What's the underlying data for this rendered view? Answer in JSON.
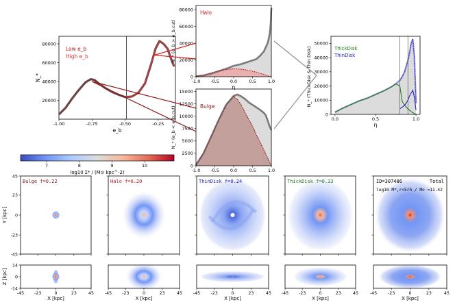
{
  "chart_data": {
    "type": "line",
    "colors": {
      "lowEb": "#b01818",
      "highEb": "#e03030",
      "halo": "#c81616",
      "bulge": "#8b1a1a",
      "thick": "#1e7a1e",
      "thin": "#1e1ec8",
      "dist": "#7a7a7a",
      "fill": "#dcdcdc",
      "link": "#cc2222",
      "link2": "#8b1a1a",
      "grey": "#909090"
    },
    "eb_panel": {
      "xlabel": "e_b",
      "ylabel": "N_*",
      "xticks": [
        "-1.00",
        "-0.75",
        "-0.50",
        "-0.25"
      ],
      "yticks": [
        "20000",
        "40000",
        "60000",
        "80000"
      ],
      "xlim": [
        -1.0,
        -0.12
      ],
      "ylim": [
        0,
        88000
      ],
      "cut": -0.49,
      "legend": [
        "Low e_b",
        "High e_b"
      ],
      "x": [
        -1.0,
        -0.95,
        -0.9,
        -0.85,
        -0.8,
        -0.76,
        -0.73,
        -0.7,
        -0.65,
        -0.6,
        -0.55,
        -0.5,
        -0.45,
        -0.4,
        -0.35,
        -0.3,
        -0.27,
        -0.24,
        -0.21,
        -0.18,
        -0.15,
        -0.13
      ],
      "y": [
        5000,
        12000,
        22000,
        31000,
        39000,
        42500,
        41500,
        38000,
        33000,
        29000,
        26000,
        23500,
        24000,
        28000,
        38000,
        60000,
        75000,
        83000,
        80000,
        75000,
        63000,
        56000
      ]
    },
    "halo_panel": {
      "label": "Halo",
      "ylabel": "N_* (e_b > e_b,cut)",
      "xticks": [
        "-1.0",
        "-0.5",
        "0.0",
        "0.5",
        "1.0"
      ],
      "yticks": [
        "0",
        "20000",
        "40000",
        "60000",
        "80000"
      ],
      "ylim": [
        0,
        85000
      ],
      "eta": [
        -1.0,
        -0.8,
        -0.6,
        -0.4,
        -0.2,
        0.0,
        0.2,
        0.4,
        0.6,
        0.7,
        0.8,
        0.85,
        0.9,
        0.93,
        0.95,
        0.97,
        0.985,
        1.0
      ],
      "total": [
        400,
        1500,
        3500,
        6500,
        9500,
        13000,
        15000,
        18000,
        21000,
        25000,
        30000,
        35000,
        40000,
        45000,
        50000,
        57000,
        65000,
        82000
      ],
      "component": [
        400,
        2000,
        4500,
        7000,
        8500,
        9500,
        9000,
        7500,
        5500,
        4000,
        2800,
        2000,
        1400,
        900,
        600,
        300,
        150,
        0
      ]
    },
    "bulge_panel": {
      "label": "Bulge",
      "ylabel": "N_* (e_b < e_b,cut)",
      "xlabel": "η",
      "xticks": [
        "-1.0",
        "-0.5",
        "0.0",
        "0.5",
        "1.0"
      ],
      "yticks": [
        "0",
        "2500",
        "5000",
        "7500",
        "10000",
        "12500",
        "15000"
      ],
      "ylim": [
        0,
        15500
      ],
      "eta": [
        -1.0,
        -0.8,
        -0.6,
        -0.4,
        -0.2,
        0.0,
        0.1,
        0.2,
        0.3,
        0.4,
        0.5,
        0.6,
        0.7,
        0.8,
        0.85,
        0.9,
        0.95,
        1.0
      ],
      "total": [
        150,
        2500,
        5800,
        9200,
        12300,
        14100,
        14400,
        14000,
        13500,
        12800,
        12300,
        11800,
        11300,
        10700,
        10200,
        9200,
        8000,
        7200
      ],
      "component": [
        150,
        2500,
        5800,
        9200,
        12300,
        14000,
        13400,
        12300,
        10800,
        9400,
        8000,
        6300,
        4800,
        3200,
        2400,
        1600,
        800,
        0
      ]
    },
    "disk_panel": {
      "legend": [
        "ThickDisk",
        "ThinDisk"
      ],
      "xlabel": "η",
      "ylabel": "N_* (ThickDisk & Thin Disk)",
      "xticks": [
        "0.0",
        "0.5",
        "1.0"
      ],
      "yticks": [
        "0",
        "10000",
        "20000",
        "30000",
        "40000",
        "50000"
      ],
      "xlim": [
        -0.05,
        1.05
      ],
      "ylim": [
        0,
        55000
      ],
      "cut1": 0.8,
      "cut2": 0.9,
      "eta": [
        0.0,
        0.1,
        0.2,
        0.3,
        0.4,
        0.5,
        0.6,
        0.7,
        0.75,
        0.8,
        0.83,
        0.86,
        0.88,
        0.9,
        0.92,
        0.94,
        0.96,
        0.98,
        1.0
      ],
      "total": [
        1500,
        4500,
        7000,
        9500,
        11500,
        14000,
        16500,
        19500,
        21500,
        24000,
        26500,
        30000,
        34000,
        38000,
        43000,
        50000,
        53000,
        40000,
        8000
      ],
      "thick": [
        1500,
        4500,
        7000,
        9500,
        11500,
        14000,
        16500,
        19500,
        21500,
        20000,
        9000,
        6500,
        5000,
        4000,
        3000,
        2000,
        1200,
        600,
        0
      ],
      "thin": [
        0,
        0,
        0,
        0,
        0,
        0,
        0,
        0,
        0,
        4000,
        5000,
        6500,
        8000,
        10000,
        13000,
        15000,
        17000,
        12000,
        3000
      ]
    },
    "colorbar": {
      "label": "log10 Σ* / (M⊙ kpc^-2)",
      "ticks": [
        "7",
        "8",
        "9",
        "10"
      ],
      "range": [
        6.2,
        10.9
      ],
      "stops": [
        "#3b4cc0",
        "#7396f5",
        "#b0cbfc",
        "#dddcdc",
        "#f6b89b",
        "#e36c55",
        "#b40426"
      ]
    },
    "maps": {
      "face_ylabel": "Y [kpc]",
      "edge_ylabel": "Z [kpc]",
      "xlabel": "X [kpc]",
      "xticks": [
        "-45",
        "-23",
        "0",
        "23",
        "45"
      ],
      "face_yticks": [
        "45",
        "23",
        "0",
        "-23",
        "-45"
      ],
      "edge_yticks": [
        "14",
        "0",
        "-14"
      ],
      "panels": [
        {
          "name": "bulge",
          "label": "Bulge",
          "frac": "f=0.22",
          "color": "#8b1a1a"
        },
        {
          "name": "halo",
          "label": "Halo",
          "frac": "f=0.20",
          "color": "#c81616"
        },
        {
          "name": "thindisk",
          "label": "ThinDisk",
          "frac": "f=0.24",
          "color": "#1e1ec8"
        },
        {
          "name": "thickdisk",
          "label": "ThickDisk",
          "frac": "f=0.33",
          "color": "#1e7a1e"
        },
        {
          "name": "total",
          "label": "Total",
          "frac": "",
          "color": "#000000"
        }
      ],
      "total_id": "ID=307486",
      "total_mass": "log10 M*,r<5rh / M⊙ =11.42"
    }
  }
}
